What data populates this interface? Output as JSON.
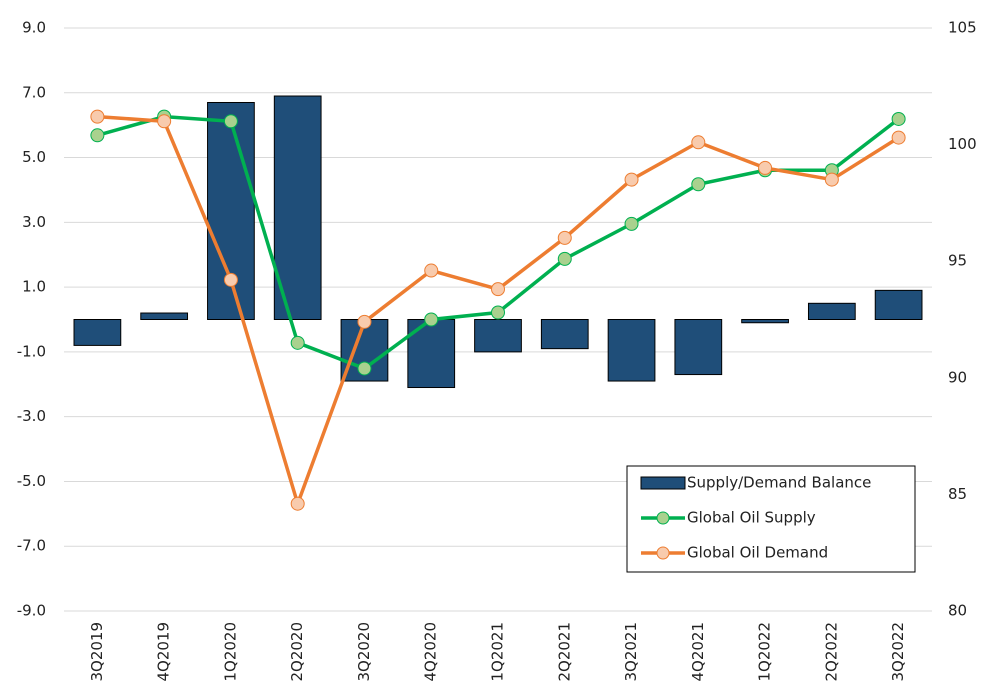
{
  "chart_data": {
    "type": "bar",
    "categories": [
      "3Q2019",
      "4Q2019",
      "1Q2020",
      "2Q2020",
      "3Q2020",
      "4Q2020",
      "1Q2021",
      "2Q2021",
      "3Q2021",
      "4Q2021",
      "1Q2022",
      "2Q2022",
      "3Q2022"
    ],
    "series": [
      {
        "name": "Supply/Demand Balance",
        "type": "bar",
        "color": "#1f4e79",
        "values": [
          -0.8,
          0.2,
          6.7,
          6.9,
          -1.9,
          -2.1,
          -1.0,
          -0.9,
          -1.9,
          -1.7,
          -0.1,
          0.5,
          0.9
        ]
      },
      {
        "name": "Global Oil Supply",
        "type": "line",
        "axis": "y2",
        "color": "#00b050",
        "marker_color": "#a9d18e",
        "values": [
          100.4,
          101.2,
          101.0,
          91.5,
          90.4,
          92.5,
          92.8,
          95.1,
          96.6,
          98.3,
          98.9,
          98.9,
          101.1
        ]
      },
      {
        "name": "Global Oil Demand",
        "type": "line",
        "axis": "y2",
        "color": "#ed7d31",
        "marker_color": "#f8cbad",
        "values": [
          101.2,
          101.0,
          94.2,
          84.6,
          92.4,
          94.6,
          93.8,
          96.0,
          98.5,
          100.1,
          99.0,
          98.5,
          100.3
        ]
      }
    ],
    "ylim": [
      -9,
      9
    ],
    "yticks": [
      {
        "value": 9,
        "label": "9.0"
      },
      {
        "value": 7,
        "label": "7.0"
      },
      {
        "value": 5,
        "label": "5.0"
      },
      {
        "value": 3,
        "label": "3.0"
      },
      {
        "value": 1,
        "label": "1.0"
      },
      {
        "value": -1,
        "label": "-1.0"
      },
      {
        "value": -3,
        "label": "-3.0"
      },
      {
        "value": -5,
        "label": "-5.0"
      },
      {
        "value": -7,
        "label": "-7.0"
      },
      {
        "value": -9,
        "label": "-9.0"
      }
    ],
    "y2lim": [
      80,
      105
    ],
    "y2ticks": [
      105,
      100,
      95,
      90,
      85,
      80
    ],
    "grid": true,
    "legend": "lower right"
  }
}
